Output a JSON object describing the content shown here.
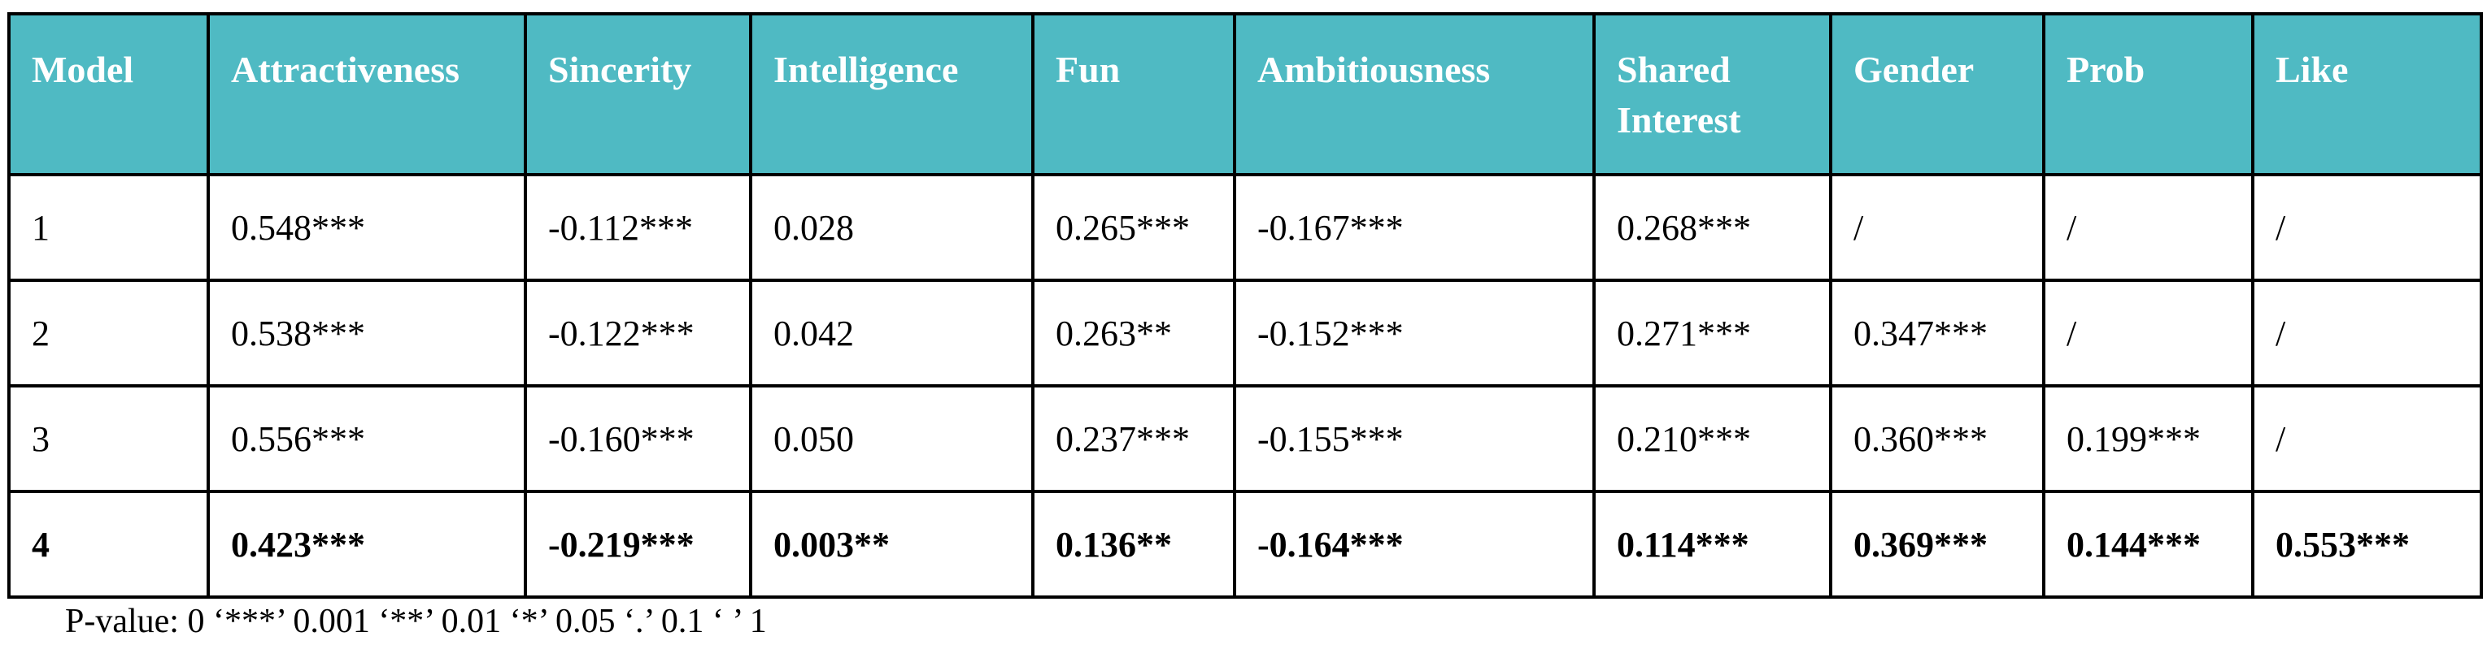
{
  "table": {
    "headers": [
      "Model",
      "Attractiveness",
      "Sincerity",
      "Intelligence",
      "Fun",
      "Ambitiousness",
      "Shared Interest",
      "Gender",
      "Prob",
      "Like"
    ],
    "header_color": "#4fbac3",
    "rows": [
      [
        "1",
        "0.548***",
        "-0.112***",
        "0.028",
        "0.265***",
        "-0.167***",
        "0.268***",
        "/",
        "/",
        "/"
      ],
      [
        "2",
        "0.538***",
        "-0.122***",
        "0.042",
        "0.263**",
        "-0.152***",
        "0.271***",
        "0.347***",
        "/",
        "/"
      ],
      [
        "3",
        "0.556***",
        "-0.160***",
        "0.050",
        "0.237***",
        "-0.155***",
        "0.210***",
        "0.360***",
        "0.199***",
        "/"
      ],
      [
        "4",
        "0.423***",
        "-0.219***",
        "0.003**",
        "0.136**",
        "-0.164***",
        "0.114***",
        "0.369***",
        "0.144***",
        "0.553***"
      ]
    ],
    "bold_row_index": 3
  },
  "footnote": "P-value: 0 ‘***’ 0.001 ‘**’ 0.01 ‘*’ 0.05 ‘.’ 0.1 ‘ ’ 1"
}
